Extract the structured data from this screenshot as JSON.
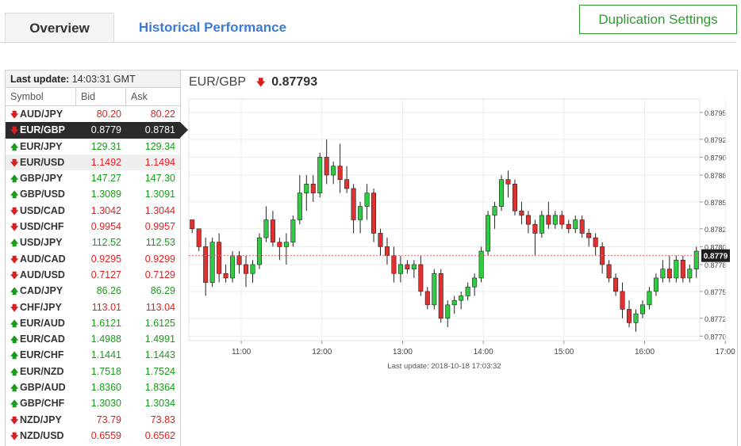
{
  "tabs": {
    "overview": "Overview",
    "history": "Historical Performance"
  },
  "duplication_button": "Duplication Settings",
  "rates_table": {
    "last_update_label": "Last update:",
    "last_update_time": "14:03:31 GMT",
    "headers": [
      "Symbol",
      "Bid",
      "Ask"
    ],
    "rows": [
      {
        "symbol": "AUD/JPY",
        "bid": "80.20",
        "ask": "80.22",
        "dir": "down"
      },
      {
        "symbol": "EUR/GBP",
        "bid": "0.8779",
        "ask": "0.8781",
        "dir": "down",
        "selected": true
      },
      {
        "symbol": "EUR/JPY",
        "bid": "129.31",
        "ask": "129.34",
        "dir": "up"
      },
      {
        "symbol": "EUR/USD",
        "bid": "1.1492",
        "ask": "1.1494",
        "dir": "down",
        "highlight": true
      },
      {
        "symbol": "GBP/JPY",
        "bid": "147.27",
        "ask": "147.30",
        "dir": "up"
      },
      {
        "symbol": "GBP/USD",
        "bid": "1.3089",
        "ask": "1.3091",
        "dir": "up"
      },
      {
        "symbol": "USD/CAD",
        "bid": "1.3042",
        "ask": "1.3044",
        "dir": "down"
      },
      {
        "symbol": "USD/CHF",
        "bid": "0.9954",
        "ask": "0.9957",
        "dir": "down"
      },
      {
        "symbol": "USD/JPY",
        "bid": "112.52",
        "ask": "112.53",
        "dir": "up"
      },
      {
        "symbol": "AUD/CAD",
        "bid": "0.9295",
        "ask": "0.9299",
        "dir": "down"
      },
      {
        "symbol": "AUD/USD",
        "bid": "0.7127",
        "ask": "0.7129",
        "dir": "down"
      },
      {
        "symbol": "CAD/JPY",
        "bid": "86.26",
        "ask": "86.29",
        "dir": "up"
      },
      {
        "symbol": "CHF/JPY",
        "bid": "113.01",
        "ask": "113.04",
        "dir": "down"
      },
      {
        "symbol": "EUR/AUD",
        "bid": "1.6121",
        "ask": "1.6125",
        "dir": "up"
      },
      {
        "symbol": "EUR/CAD",
        "bid": "1.4988",
        "ask": "1.4991",
        "dir": "up"
      },
      {
        "symbol": "EUR/CHF",
        "bid": "1.1441",
        "ask": "1.1443",
        "dir": "up"
      },
      {
        "symbol": "EUR/NZD",
        "bid": "1.7518",
        "ask": "1.7524",
        "dir": "up"
      },
      {
        "symbol": "GBP/AUD",
        "bid": "1.8360",
        "ask": "1.8364",
        "dir": "up"
      },
      {
        "symbol": "GBP/CHF",
        "bid": "1.3030",
        "ask": "1.3034",
        "dir": "up"
      },
      {
        "symbol": "NZD/JPY",
        "bid": "73.79",
        "ask": "73.83",
        "dir": "down"
      },
      {
        "symbol": "NZD/USD",
        "bid": "0.6559",
        "ask": "0.6562",
        "dir": "down"
      }
    ]
  },
  "chart_header": {
    "pair": "EUR/GBP",
    "direction": "down",
    "price": "0.87793"
  },
  "chart_data": {
    "type": "candlestick",
    "x_ticks": [
      "11:00",
      "12:00",
      "13:00",
      "14:00",
      "15:00",
      "16:00",
      "17:00"
    ],
    "y_ticks": [
      "0.8795",
      "0.8792",
      "0.8790",
      "0.8788",
      "0.8785",
      "0.8782",
      "0.8780",
      "0.8778",
      "0.8775",
      "0.8772",
      "0.8770"
    ],
    "ylim": [
      0.87695,
      0.87965
    ],
    "current_price_label": "0.8779",
    "current_price": 0.8779,
    "footer": "Last update: 2018-10-18 17:03:32",
    "up_color": "#2ecc40",
    "down_color": "#e03030",
    "candles": [
      [
        0.8783,
        0.8783,
        0.87815,
        0.8782
      ],
      [
        0.8782,
        0.8782,
        0.87795,
        0.878
      ],
      [
        0.878,
        0.8781,
        0.87745,
        0.8776
      ],
      [
        0.8776,
        0.8781,
        0.87755,
        0.87805
      ],
      [
        0.87805,
        0.87815,
        0.8776,
        0.8777
      ],
      [
        0.8777,
        0.8778,
        0.8776,
        0.87765
      ],
      [
        0.87765,
        0.87795,
        0.8776,
        0.8779
      ],
      [
        0.8779,
        0.87795,
        0.8777,
        0.8778
      ],
      [
        0.8778,
        0.8779,
        0.87755,
        0.8777
      ],
      [
        0.8777,
        0.87785,
        0.8776,
        0.8778
      ],
      [
        0.8778,
        0.87815,
        0.87775,
        0.8781
      ],
      [
        0.8781,
        0.87845,
        0.87805,
        0.8783
      ],
      [
        0.8783,
        0.8784,
        0.878,
        0.87805
      ],
      [
        0.87805,
        0.8781,
        0.87785,
        0.878
      ],
      [
        0.878,
        0.87815,
        0.8778,
        0.87805
      ],
      [
        0.87805,
        0.87835,
        0.878,
        0.8783
      ],
      [
        0.8783,
        0.8788,
        0.87825,
        0.8786
      ],
      [
        0.8786,
        0.8788,
        0.8784,
        0.8787
      ],
      [
        0.8787,
        0.8788,
        0.8785,
        0.8786
      ],
      [
        0.8786,
        0.87905,
        0.87855,
        0.879
      ],
      [
        0.879,
        0.8792,
        0.8787,
        0.8788
      ],
      [
        0.8788,
        0.87895,
        0.8787,
        0.8789
      ],
      [
        0.8789,
        0.87915,
        0.8786,
        0.87875
      ],
      [
        0.87875,
        0.8789,
        0.8786,
        0.87865
      ],
      [
        0.87865,
        0.8787,
        0.87815,
        0.8783
      ],
      [
        0.8783,
        0.8785,
        0.87815,
        0.87845
      ],
      [
        0.87845,
        0.8787,
        0.8783,
        0.8786
      ],
      [
        0.8786,
        0.87865,
        0.87805,
        0.87815
      ],
      [
        0.87815,
        0.8782,
        0.8779,
        0.878
      ],
      [
        0.878,
        0.8781,
        0.8778,
        0.8779
      ],
      [
        0.8779,
        0.878,
        0.8776,
        0.8777
      ],
      [
        0.8777,
        0.8779,
        0.8776,
        0.8778
      ],
      [
        0.8778,
        0.87785,
        0.8777,
        0.87775
      ],
      [
        0.87775,
        0.87785,
        0.87765,
        0.8778
      ],
      [
        0.8778,
        0.8779,
        0.87745,
        0.8775
      ],
      [
        0.8775,
        0.87755,
        0.8773,
        0.87735
      ],
      [
        0.87735,
        0.87775,
        0.8773,
        0.8777
      ],
      [
        0.8777,
        0.87775,
        0.87715,
        0.8772
      ],
      [
        0.8772,
        0.8774,
        0.8771,
        0.87735
      ],
      [
        0.87735,
        0.87745,
        0.87725,
        0.8774
      ],
      [
        0.8774,
        0.8775,
        0.8773,
        0.87745
      ],
      [
        0.87745,
        0.8776,
        0.8774,
        0.87755
      ],
      [
        0.87755,
        0.8777,
        0.87745,
        0.87765
      ],
      [
        0.87765,
        0.878,
        0.8776,
        0.87795
      ],
      [
        0.87795,
        0.8784,
        0.8779,
        0.87835
      ],
      [
        0.87835,
        0.8785,
        0.8782,
        0.87845
      ],
      [
        0.87845,
        0.8788,
        0.8784,
        0.87875
      ],
      [
        0.87875,
        0.87885,
        0.87855,
        0.8787
      ],
      [
        0.8787,
        0.87875,
        0.87835,
        0.8784
      ],
      [
        0.8784,
        0.8785,
        0.87825,
        0.87835
      ],
      [
        0.87835,
        0.8784,
        0.87815,
        0.87825
      ],
      [
        0.87825,
        0.8783,
        0.8779,
        0.87815
      ],
      [
        0.87815,
        0.8784,
        0.8781,
        0.87835
      ],
      [
        0.87835,
        0.8785,
        0.8782,
        0.87825
      ],
      [
        0.87825,
        0.8784,
        0.8782,
        0.87835
      ],
      [
        0.87835,
        0.8784,
        0.8782,
        0.87825
      ],
      [
        0.87825,
        0.8783,
        0.87815,
        0.8782
      ],
      [
        0.8782,
        0.87835,
        0.87815,
        0.8783
      ],
      [
        0.8783,
        0.87835,
        0.8781,
        0.87815
      ],
      [
        0.87815,
        0.8782,
        0.878,
        0.8781
      ],
      [
        0.8781,
        0.87815,
        0.8779,
        0.878
      ],
      [
        0.878,
        0.87805,
        0.8777,
        0.8778
      ],
      [
        0.8778,
        0.87785,
        0.8776,
        0.87765
      ],
      [
        0.87765,
        0.8777,
        0.87745,
        0.8775
      ],
      [
        0.8775,
        0.8776,
        0.8772,
        0.8773
      ],
      [
        0.8773,
        0.8774,
        0.8771,
        0.87715
      ],
      [
        0.87715,
        0.8773,
        0.87705,
        0.87725
      ],
      [
        0.87725,
        0.8774,
        0.8772,
        0.87735
      ],
      [
        0.87735,
        0.87755,
        0.8773,
        0.8775
      ],
      [
        0.8775,
        0.8777,
        0.87745,
        0.87765
      ],
      [
        0.87765,
        0.87785,
        0.8776,
        0.87775
      ],
      [
        0.87775,
        0.8779,
        0.8776,
        0.87765
      ],
      [
        0.87765,
        0.8779,
        0.8776,
        0.87785
      ],
      [
        0.87785,
        0.8779,
        0.8776,
        0.87765
      ],
      [
        0.87765,
        0.8778,
        0.8776,
        0.87775
      ],
      [
        0.87775,
        0.878,
        0.87765,
        0.87795
      ]
    ]
  }
}
